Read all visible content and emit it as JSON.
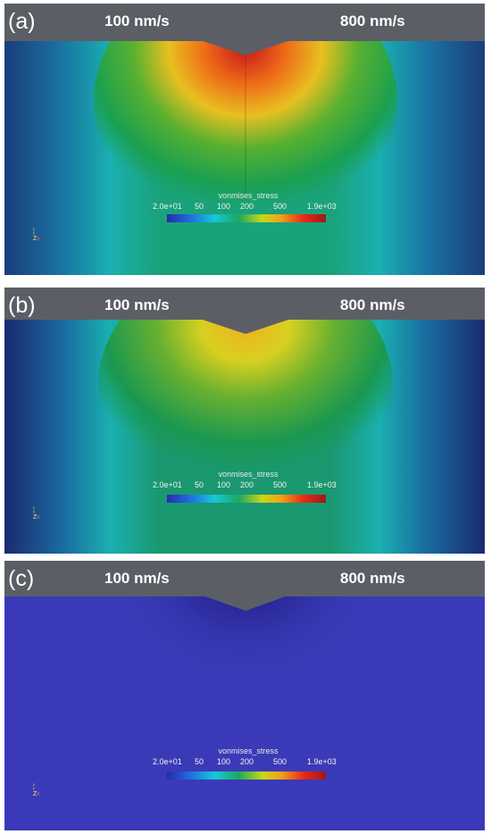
{
  "panels": [
    {
      "label": "(a)",
      "left_speed": "100 nm/s",
      "right_speed": "800 nm/s",
      "state": "high-stress"
    },
    {
      "label": "(b)",
      "left_speed": "100 nm/s",
      "right_speed": "800 nm/s",
      "state": "medium-stress"
    },
    {
      "label": "(c)",
      "left_speed": "100 nm/s",
      "right_speed": "800 nm/s",
      "state": "low-stress"
    }
  ],
  "colorbar": {
    "title": "vonmises_stress",
    "ticks": [
      "2.0e+01",
      "50",
      "100",
      "200",
      "500",
      "1.9e+03"
    ],
    "colormap": [
      "#2a2aa8",
      "#1f6fe0",
      "#18c8d8",
      "#1aa860",
      "#c8d818",
      "#f0a018",
      "#e82a18",
      "#a01818"
    ]
  },
  "colors": {
    "header": "#5c5e66",
    "mesh_dark": "#1f2c78",
    "mesh_mid": "#1aa8a8",
    "uniform_blue": "#3a3ab8"
  }
}
